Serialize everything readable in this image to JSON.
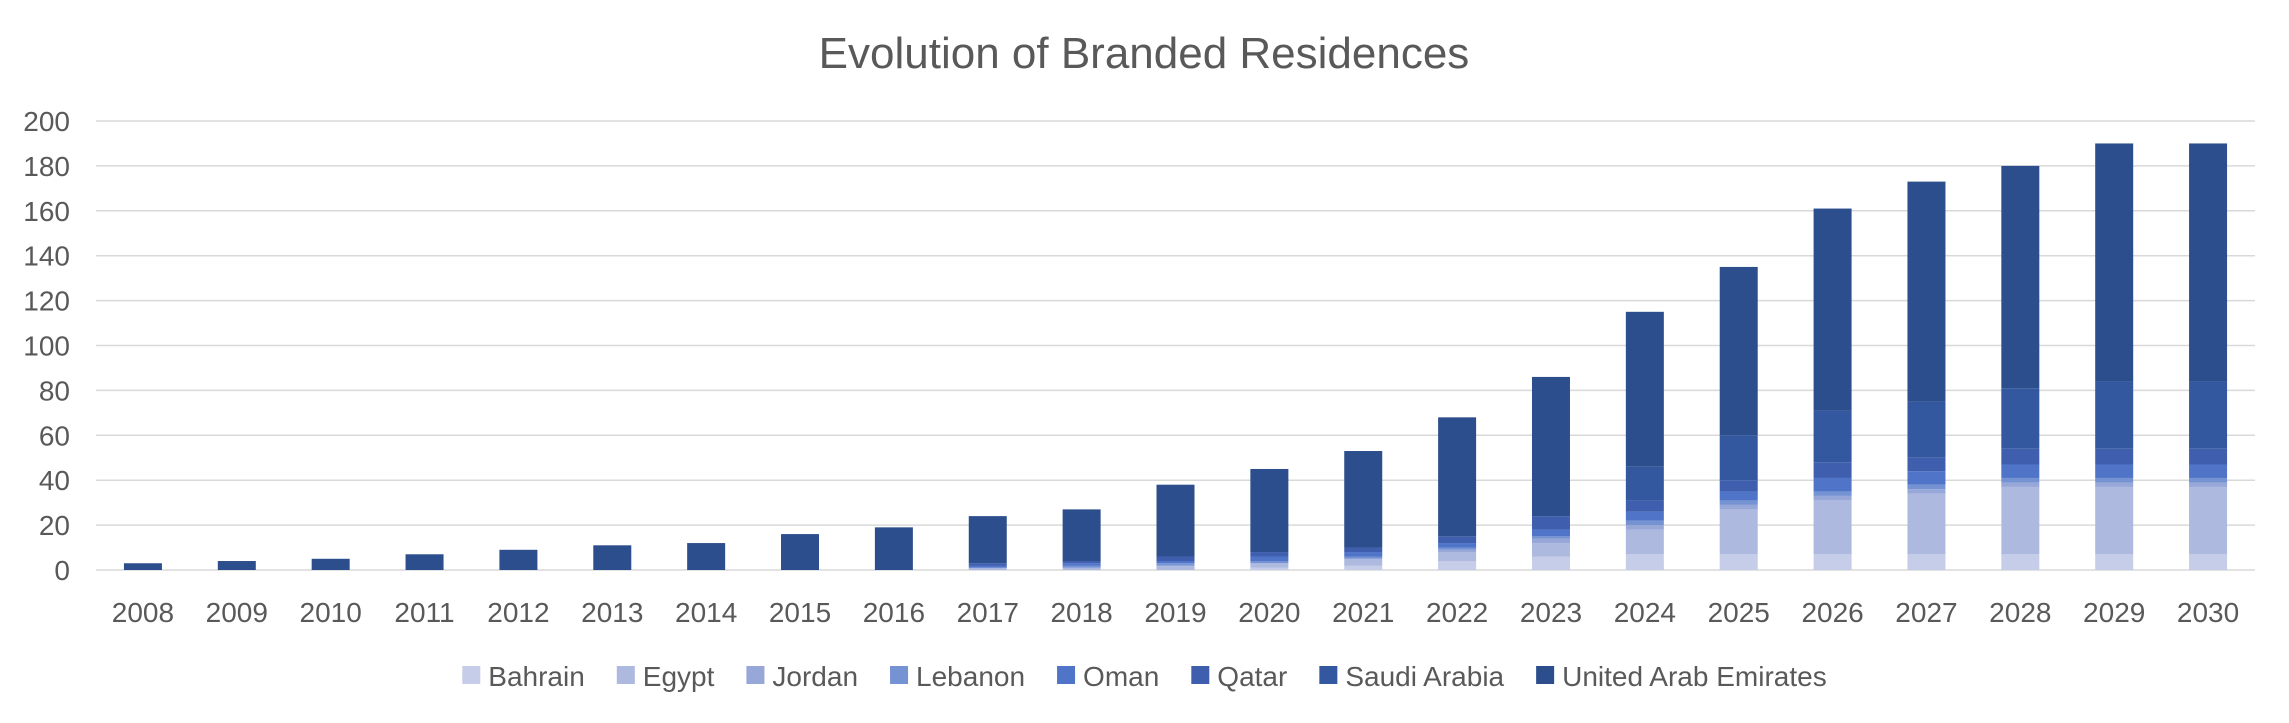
{
  "chart_data": {
    "type": "bar",
    "stacked": true,
    "title": "Evolution of Branded Residences",
    "xlabel": "",
    "ylabel": "",
    "ylim": [
      0,
      200
    ],
    "yticks": [
      0,
      20,
      40,
      60,
      80,
      100,
      120,
      140,
      160,
      180,
      200
    ],
    "grid": true,
    "legend_position": "bottom",
    "categories": [
      "2008",
      "2009",
      "2010",
      "2011",
      "2012",
      "2013",
      "2014",
      "2015",
      "2016",
      "2017",
      "2018",
      "2019",
      "2020",
      "2021",
      "2022",
      "2023",
      "2024",
      "2025",
      "2026",
      "2027",
      "2028",
      "2029",
      "2030"
    ],
    "series": [
      {
        "name": "Bahrain",
        "color": "#c5cde8",
        "values": [
          0,
          0,
          0,
          0,
          0,
          0,
          0,
          0,
          0,
          0,
          0,
          0,
          1,
          2,
          4,
          6,
          7,
          7,
          7,
          7,
          7,
          7,
          7
        ]
      },
      {
        "name": "Egypt",
        "color": "#aeb9e0",
        "values": [
          0,
          0,
          0,
          0,
          0,
          0,
          0,
          0,
          0,
          1,
          1,
          2,
          2,
          3,
          4,
          6,
          11,
          20,
          24,
          27,
          30,
          30,
          30
        ]
      },
      {
        "name": "Jordan",
        "color": "#97a7d8",
        "values": [
          0,
          0,
          0,
          0,
          0,
          0,
          0,
          0,
          0,
          0,
          0,
          0,
          0,
          0,
          1,
          2,
          2,
          2,
          2,
          2,
          2,
          2,
          2
        ]
      },
      {
        "name": "Lebanon",
        "color": "#7592d3",
        "values": [
          0,
          0,
          0,
          0,
          0,
          0,
          0,
          0,
          0,
          0,
          1,
          1,
          1,
          1,
          1,
          1,
          2,
          2,
          2,
          2,
          2,
          2,
          2
        ]
      },
      {
        "name": "Oman",
        "color": "#4f74c8",
        "values": [
          0,
          0,
          0,
          0,
          0,
          0,
          0,
          0,
          0,
          1,
          1,
          1,
          2,
          2,
          2,
          3,
          4,
          4,
          6,
          6,
          6,
          6,
          6
        ]
      },
      {
        "name": "Qatar",
        "color": "#3f5fae",
        "values": [
          0,
          0,
          0,
          0,
          0,
          0,
          0,
          0,
          0,
          1,
          1,
          2,
          2,
          2,
          3,
          6,
          5,
          5,
          7,
          6,
          7,
          7,
          7
        ]
      },
      {
        "name": "Saudi Arabia",
        "color": "#34589f",
        "values": [
          0,
          0,
          0,
          0,
          0,
          0,
          0,
          0,
          0,
          0,
          0,
          0,
          0,
          0,
          0,
          0,
          15,
          20,
          23,
          25,
          27,
          30,
          30
        ]
      },
      {
        "name": "United Arab Emirates",
        "color": "#2d4e8c",
        "values": [
          3,
          4,
          5,
          7,
          9,
          11,
          12,
          16,
          19,
          21,
          23,
          32,
          37,
          43,
          53,
          62,
          69,
          75,
          90,
          98,
          99,
          106,
          106
        ]
      }
    ]
  }
}
